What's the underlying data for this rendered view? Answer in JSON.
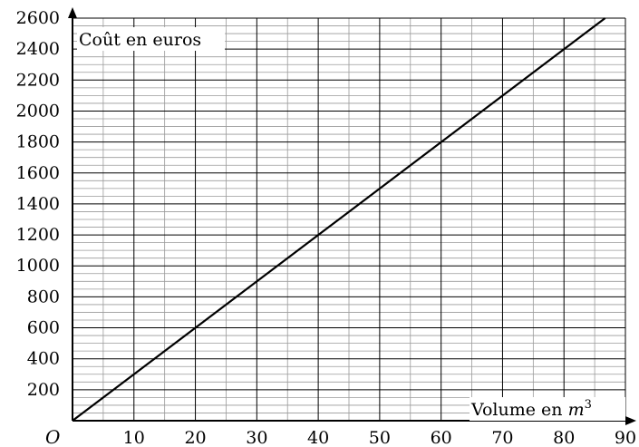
{
  "chart_data": {
    "type": "line",
    "title": "",
    "xlabel_prefix": "Volume en ",
    "xlabel_var": "m",
    "xlabel_exp": "3",
    "ylabel": "Coût en euros",
    "origin_label": "O",
    "xlim": [
      0,
      90
    ],
    "ylim": [
      0,
      2600
    ],
    "x_ticks": [
      10,
      20,
      30,
      40,
      50,
      60,
      70,
      80,
      90
    ],
    "y_ticks": [
      200,
      400,
      600,
      800,
      1000,
      1200,
      1400,
      1600,
      1800,
      2000,
      2200,
      2400,
      2600
    ],
    "minor_x_step": 5,
    "minor_y_step": 50,
    "grid": true,
    "series": [
      {
        "x": [
          0,
          86.7
        ],
        "y": [
          0,
          2600
        ]
      }
    ]
  }
}
